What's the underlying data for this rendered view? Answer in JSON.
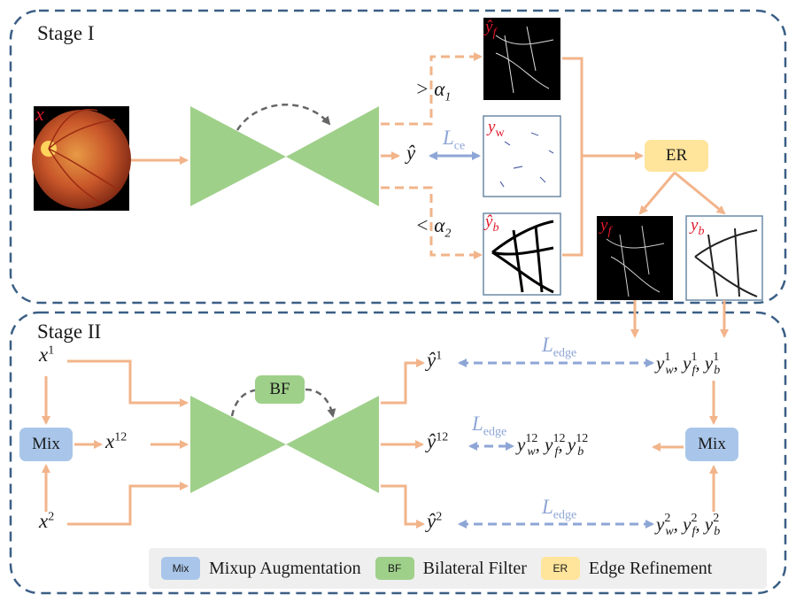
{
  "stages": {
    "stage1_title": "Stage I",
    "stage2_title": "Stage II"
  },
  "stage1": {
    "input_label": "x",
    "output_label": "ŷ",
    "loss_label": "L",
    "loss_sub": "ce",
    "thresh_gt": "> α",
    "thresh_gt_sub": "1",
    "thresh_lt": "< α",
    "thresh_lt_sub": "2",
    "yf_hat": "ŷ",
    "yf_hat_sub": "f",
    "yw": "y",
    "yw_sub": "w",
    "yb_hat": "ŷ",
    "yb_hat_sub": "b",
    "er_label": "ER",
    "yf": "y",
    "yf_sub": "f",
    "yb": "y",
    "yb_sub": "b"
  },
  "stage2": {
    "x1": "x",
    "x1_sup": "1",
    "x2": "x",
    "x2_sup": "2",
    "x12": "x",
    "x12_sup": "12",
    "mix_left": "Mix",
    "mix_right": "Mix",
    "bf_label": "BF",
    "yhat1": "ŷ",
    "yhat1_sup": "1",
    "yhat12": "ŷ",
    "yhat12_sup": "12",
    "yhat2": "ŷ",
    "yhat2_sup": "2",
    "loss_edge": "L",
    "loss_edge_sub": "edge",
    "targets1": [
      "1",
      "1",
      "1"
    ],
    "targets12": [
      "12",
      "12",
      "12"
    ],
    "targets2": [
      "2",
      "2",
      "2"
    ],
    "target_y": "y",
    "target_subs": [
      "w",
      "f",
      "b"
    ]
  },
  "legend": {
    "mix_swatch": "Mix",
    "mix_text": "Mixup Augmentation",
    "bf_swatch": "BF",
    "bf_text": "Bilateral Filter",
    "er_swatch": "ER",
    "er_text": "Edge Refinement"
  },
  "colors": {
    "frame": "#3b5f86",
    "arrow_orange": "#f2b48a",
    "arrow_blue": "#8ea6d6",
    "encoder_green": "#9fd08a",
    "mix_blue": "#a9c6ea",
    "bf_green": "#9fd08a",
    "er_yellow": "#ffe49b",
    "label_red": "#e0182a"
  }
}
